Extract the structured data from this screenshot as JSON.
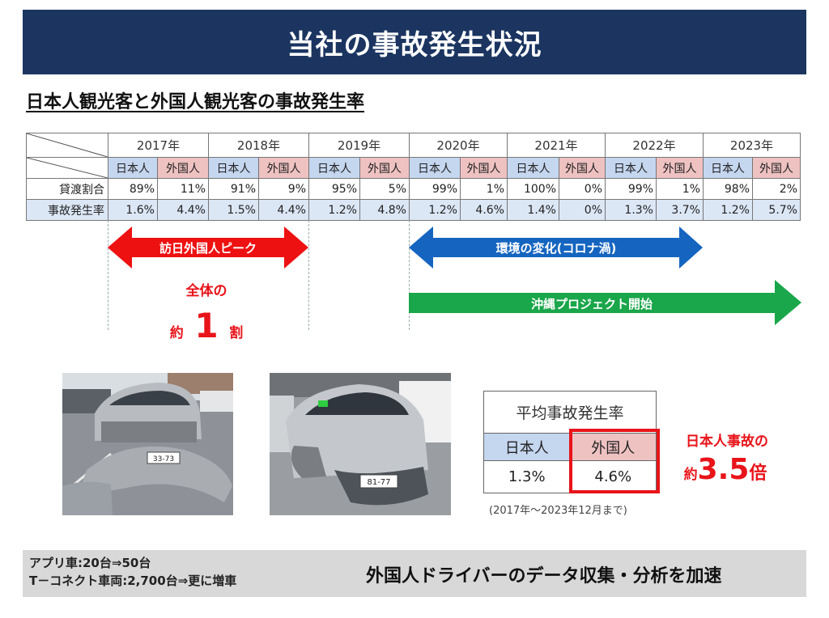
{
  "title": "当社の事故発生状況",
  "subtitle": "日本人観光客と外国人観光客の事故発生率",
  "table": {
    "years": [
      "2017年",
      "2018年",
      "2019年",
      "2020年",
      "2021年",
      "2022年",
      "2023年"
    ],
    "sub_labels": {
      "jp": "日本人",
      "fr": "外国人"
    },
    "rows": [
      {
        "label": "貸渡割合",
        "values": [
          "89%",
          "11%",
          "91%",
          "9%",
          "95%",
          "5%",
          "99%",
          "1%",
          "100%",
          "0%",
          "99%",
          "1%",
          "98%",
          "2%"
        ]
      },
      {
        "label": "事故発生率",
        "values": [
          "1.6%",
          "4.4%",
          "1.5%",
          "4.4%",
          "1.2%",
          "4.8%",
          "1.2%",
          "4.6%",
          "1.4%",
          "0%",
          "1.3%",
          "3.7%",
          "1.2%",
          "5.7%"
        ]
      }
    ]
  },
  "arrows": {
    "peak": "訪日外国人ピーク",
    "covid": "環境の変化(コロナ渦)",
    "project": "沖縄プロジェクト開始"
  },
  "ratio_note": {
    "line1": "全体の",
    "prefix": "約",
    "number": "1",
    "suffix": "割"
  },
  "avg_table": {
    "header": "平均事故発生率",
    "jp_label": "日本人",
    "fr_label": "外国人",
    "jp_value": "1.3%",
    "fr_value": "4.6%",
    "period": "(2017年～2023年12月まで)"
  },
  "multiple_note": {
    "line1": "日本人事故の",
    "prefix": "約",
    "number": "3.5",
    "suffix": "倍"
  },
  "plates": {
    "car1": "33-73",
    "car2": "81-77"
  },
  "bottom": {
    "line1": "アプリ車:20台⇒50台",
    "line2": "T－コネクト車両:2,700台⇒更に増車",
    "message": "外国人ドライバーのデータ収集・分析を加速"
  },
  "colors": {
    "title_bg": "#1b3560",
    "jp_cell": "#c5d6ef",
    "fr_cell": "#efc2c2",
    "red": "#e8141a",
    "blue": "#1565c0",
    "green": "#1aa64a",
    "bottom_bg": "#d8d8d8"
  }
}
